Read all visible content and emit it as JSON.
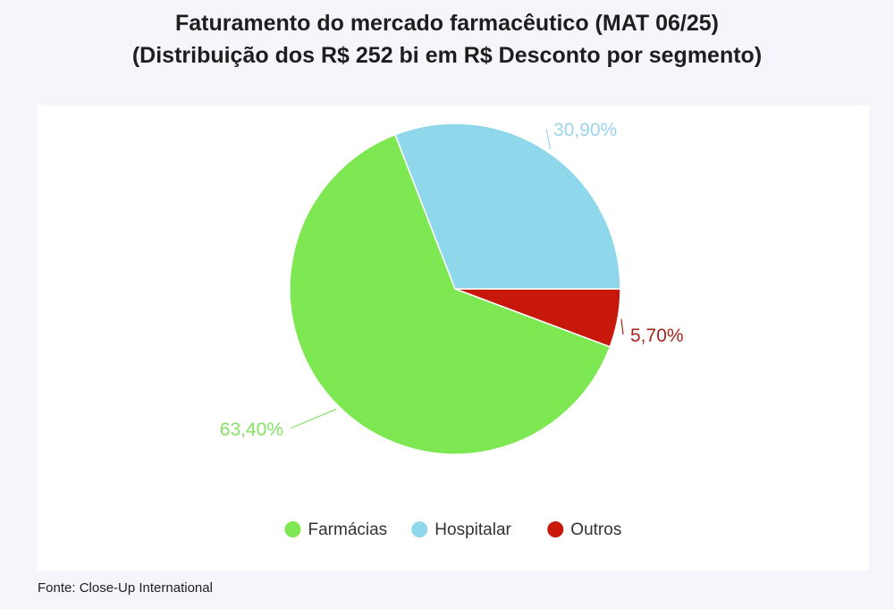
{
  "header": {
    "title": "Faturamento do mercado farmacêutico (MAT 06/25)",
    "subtitle": "(Distribuição dos R$ 252 bi em R$ Desconto por segmento)"
  },
  "footer": {
    "source": "Fonte: Close-Up International"
  },
  "chart_data": {
    "type": "pie",
    "title": "Faturamento do mercado farmacêutico (MAT 06/25)",
    "subtitle": "(Distribuição dos R$ 252 bi em R$ Desconto por segmento)",
    "slices": [
      {
        "label": "Farmácias",
        "value": 63.4,
        "display": "63,40%",
        "color": "#7de851",
        "label_color": "#86e364"
      },
      {
        "label": "Hospitalar",
        "value": 30.9,
        "display": "30,90%",
        "color": "#8fd8ec",
        "label_color": "#9ad6e8"
      },
      {
        "label": "Outros",
        "value": 5.7,
        "display": "5,70%",
        "color": "#c8170b",
        "label_color": "#a5241a"
      }
    ],
    "legend_position": "bottom",
    "source": "Fonte: Close-Up International"
  }
}
